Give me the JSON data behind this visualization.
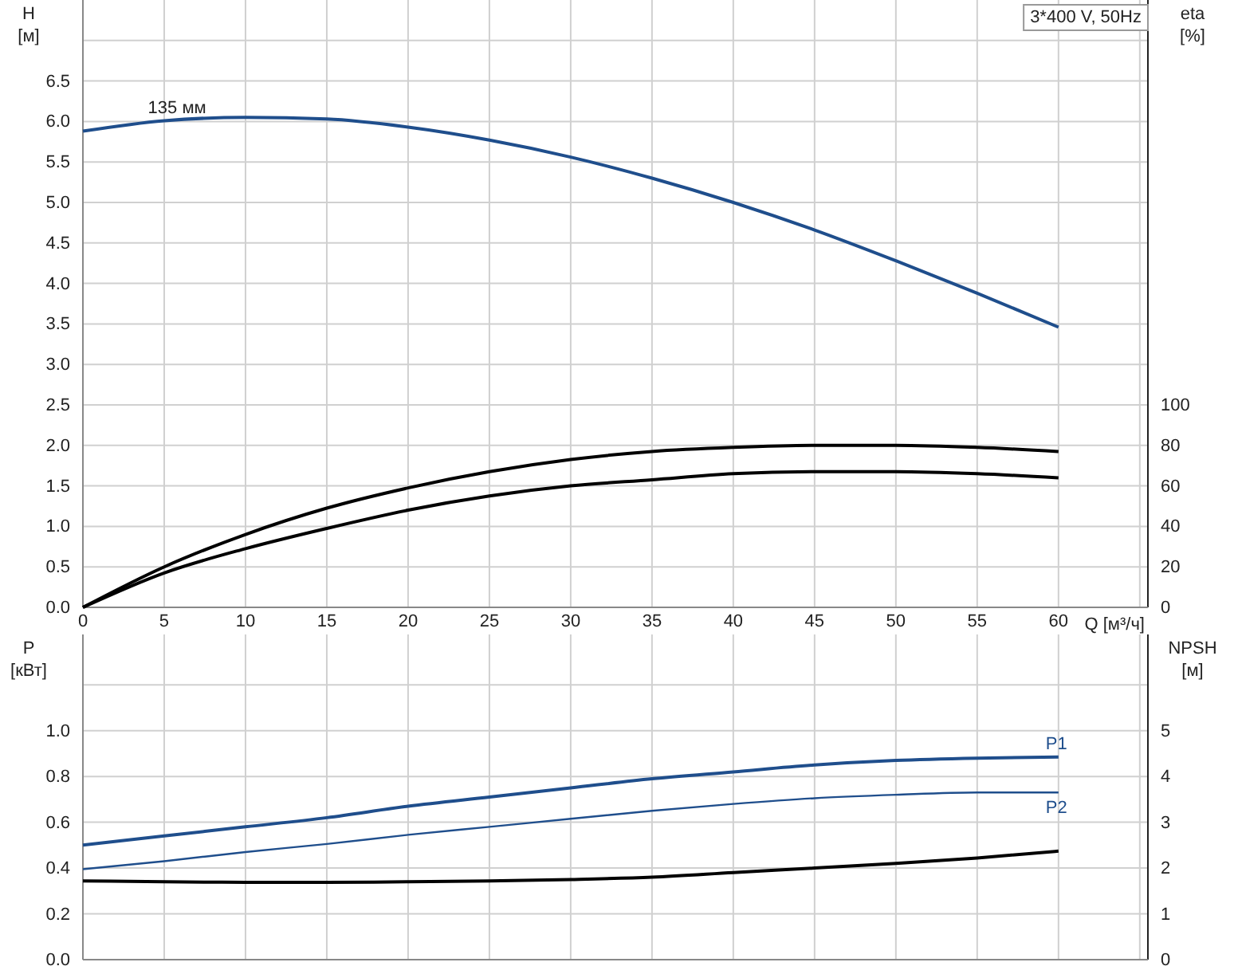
{
  "chart_data": [
    {
      "type": "line",
      "title": "3*400 V, 50Hz",
      "xlabel": "Q [м³/ч]",
      "ylabel": "H [м]",
      "y2label": "eta [%]",
      "x": [
        0,
        5,
        10,
        15,
        20,
        25,
        30,
        35,
        40,
        45,
        50,
        55,
        60
      ],
      "series": [
        {
          "color": "#1f4e8c",
          "values": [
            5.88,
            6.01,
            6.05,
            6.03,
            5.93,
            5.77,
            5.56,
            5.3,
            5.0,
            4.66,
            4.28,
            3.88,
            3.46
          ]
        },
        {
          "color": "#000000",
          "axis": "y2",
          "values": [
            0,
            20,
            36,
            49,
            59,
            67,
            73,
            77,
            79,
            80,
            80,
            79,
            77
          ]
        },
        {
          "color": "#000000",
          "axis": "y2",
          "values": [
            0,
            17,
            29,
            39,
            48,
            55,
            60,
            63,
            66,
            67,
            67,
            66,
            64
          ]
        }
      ],
      "annotations": [
        {
          "text": "135 мм",
          "x": 4,
          "y": 6.0
        }
      ],
      "xlim": [
        0,
        65.5
      ],
      "xticks": [
        0,
        5,
        10,
        15,
        20,
        25,
        30,
        35,
        40,
        45,
        50,
        55,
        60,
        {
          "value": 65,
          "label": null
        }
      ],
      "ylim": [
        0,
        7.5
      ],
      "yticks": [
        {
          "value": 0,
          "label": "0.0"
        },
        0.5,
        {
          "value": 1,
          "label": "1.0"
        },
        1.5,
        {
          "value": 2,
          "label": "2.0"
        },
        2.5,
        {
          "value": 3,
          "label": "3.0"
        },
        3.5,
        {
          "value": 4,
          "label": "4.0"
        },
        4.5,
        {
          "value": 5,
          "label": "5.0"
        },
        5.5,
        {
          "value": 6,
          "label": "6.0"
        },
        6.5,
        {
          "value": 7,
          "label": null
        }
      ],
      "y2lim": [
        0,
        300
      ],
      "y2ticks": [
        0,
        20,
        40,
        60,
        80,
        100
      ],
      "grid": true,
      "marker": "none",
      "line_style": "solid"
    },
    {
      "type": "line",
      "ylabel": "P [кВт]",
      "y2label": "NPSH [м]",
      "x": [
        0,
        5,
        10,
        15,
        20,
        25,
        30,
        35,
        40,
        45,
        50,
        55,
        60
      ],
      "series": [
        {
          "name": "P1",
          "color": "#1f4e8c",
          "values": [
            0.5,
            0.54,
            0.58,
            0.62,
            0.67,
            0.71,
            0.75,
            0.79,
            0.82,
            0.85,
            0.87,
            0.88,
            0.885
          ]
        },
        {
          "name": "P2",
          "color": "#1f4e8c",
          "values": [
            0.395,
            0.43,
            0.47,
            0.505,
            0.545,
            0.58,
            0.615,
            0.65,
            0.68,
            0.705,
            0.72,
            0.73,
            0.73
          ]
        },
        {
          "color": "#000000",
          "axis": "y2",
          "values": [
            1.72,
            1.7,
            1.69,
            1.69,
            1.7,
            1.72,
            1.75,
            1.8,
            1.9,
            2.0,
            2.1,
            2.22,
            2.37
          ]
        }
      ],
      "xlim": [
        0,
        65.5
      ],
      "xticks": [
        0,
        5,
        10,
        15,
        20,
        25,
        30,
        35,
        40,
        45,
        50,
        55,
        60,
        {
          "value": 65,
          "label": null
        }
      ],
      "ylim": [
        0,
        1.42
      ],
      "yticks": [
        {
          "value": 0,
          "label": "0.0"
        },
        0.2,
        0.4,
        0.6,
        0.8,
        {
          "value": 1,
          "label": "1.0"
        },
        {
          "value": 1.2,
          "label": null
        }
      ],
      "y2lim": [
        0,
        7.1
      ],
      "y2ticks": [
        0,
        1,
        2,
        3,
        4,
        5
      ],
      "tick_labels": "y",
      "grid": true,
      "marker": "none",
      "line_style": "solid"
    }
  ]
}
